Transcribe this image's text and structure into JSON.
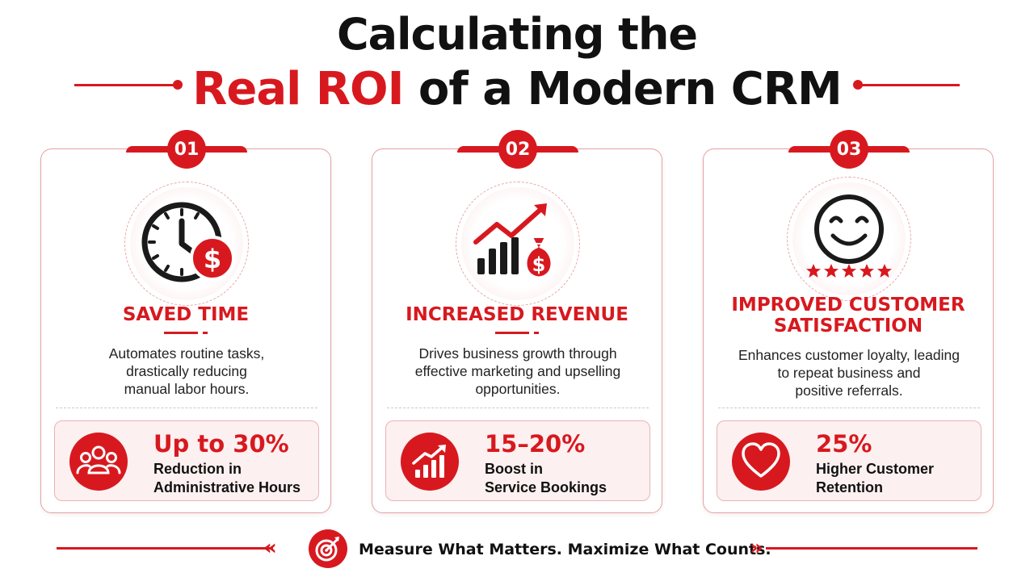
{
  "title": {
    "line1": "Calculating the",
    "line2_accent": "Real ROI",
    "line2_rest": " of a Modern CRM"
  },
  "cards": [
    {
      "number": "01",
      "icon": "clock-dollar-icon",
      "title_line1": "SAVED TIME",
      "title_line2": "",
      "description": [
        "Automates routine tasks,",
        "drastically reducing",
        "manual labor hours."
      ],
      "stat_icon": "team-icon",
      "stat_value": "Up to 30%",
      "stat_label": [
        "Reduction in",
        "Administrative Hours"
      ]
    },
    {
      "number": "02",
      "icon": "growth-chart-moneybag-icon",
      "title_line1": "INCREASED REVENUE",
      "title_line2": "",
      "description": [
        "Drives business growth through",
        "effective marketing and upselling",
        "opportunities."
      ],
      "stat_icon": "trend-up-chart-icon",
      "stat_value": "15–20%",
      "stat_label": [
        "Boost in",
        "Service Bookings"
      ]
    },
    {
      "number": "03",
      "icon": "smiley-five-stars-icon",
      "title_line1": "IMPROVED CUSTOMER",
      "title_line2": "SATISFACTION",
      "description": [
        "Enhances customer loyalty, leading",
        "to repeat business and",
        "positive referrals."
      ],
      "stat_icon": "heart-icon",
      "stat_value": "25%",
      "stat_label": [
        "Higher Customer",
        "Retention"
      ]
    }
  ],
  "footer": {
    "icon": "target-arrow-icon",
    "text": "Measure What Matters. Maximize What Counts."
  },
  "colors": {
    "accent": "#d7191f",
    "text": "#111111",
    "panel": "#fdf0f0"
  }
}
